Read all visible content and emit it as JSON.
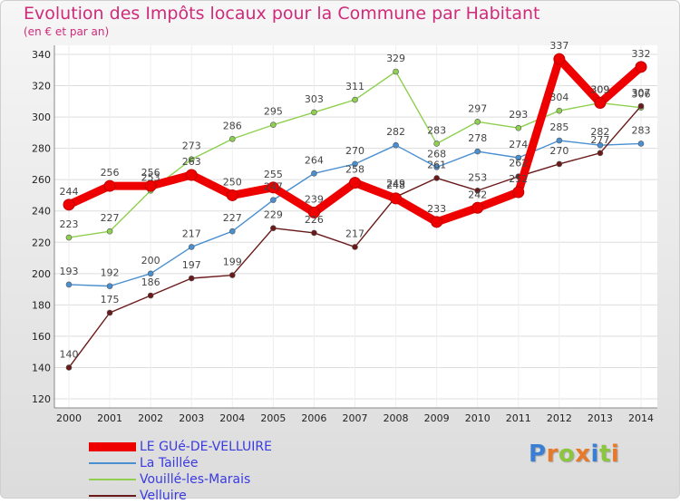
{
  "header": {
    "title": "Evolution des Impôts locaux pour la Commune par Habitant",
    "subtitle": "(en € et par an)"
  },
  "logo": {
    "text": "Proxiti"
  },
  "chart_data": {
    "type": "line",
    "title": "Evolution des Impôts locaux pour la Commune par Habitant",
    "subtitle": "(en € et par an)",
    "xlabel": "",
    "ylabel": "",
    "ylim": [
      120,
      340
    ],
    "yticks": [
      120,
      140,
      160,
      180,
      200,
      220,
      240,
      260,
      280,
      300,
      320,
      340
    ],
    "categories": [
      "2000",
      "2001",
      "2002",
      "2003",
      "2004",
      "2005",
      "2006",
      "2007",
      "2008",
      "2009",
      "2010",
      "2011",
      "2012",
      "2013",
      "2014"
    ],
    "grid": true,
    "legend_position": "bottom-left",
    "series": [
      {
        "name": "LE GUé-DE-VELLUIRE",
        "color": "#ee0000",
        "values": [
          244,
          256,
          256,
          263,
          250,
          255,
          239,
          258,
          248,
          233,
          242,
          252,
          337,
          309,
          332
        ]
      },
      {
        "name": "La Taillée",
        "color": "#4a8fd0",
        "values": [
          193,
          192,
          200,
          217,
          227,
          247,
          264,
          270,
          282,
          268,
          278,
          274,
          285,
          282,
          283
        ]
      },
      {
        "name": "Vouillé-les-Marais",
        "color": "#8fd050",
        "values": [
          223,
          227,
          253,
          273,
          286,
          295,
          303,
          311,
          329,
          283,
          297,
          293,
          304,
          309,
          306
        ]
      },
      {
        "name": "Velluire",
        "color": "#6a1a1a",
        "values": [
          140,
          175,
          186,
          197,
          199,
          229,
          226,
          217,
          249,
          261,
          253,
          262,
          270,
          277,
          307
        ]
      }
    ],
    "data_labels": [
      [
        "244",
        "256",
        "256",
        "263",
        "250",
        "255",
        "239",
        "258",
        "248",
        "233",
        "242",
        "252",
        "337",
        "309",
        "332"
      ],
      [
        "193",
        "192",
        "200",
        "217",
        "227",
        "247",
        "264",
        "270",
        "282",
        "268",
        "278",
        "274",
        "285",
        "282",
        "283"
      ],
      [
        "223",
        "227",
        "253",
        "273",
        "286",
        "295",
        "303",
        "311",
        "329",
        "283",
        "297",
        "293",
        "304",
        "309",
        "306"
      ],
      [
        "140",
        "175",
        "186",
        "197",
        "199",
        "229",
        "226",
        "217",
        "249",
        "261",
        "253",
        "262",
        "270",
        "277",
        "307"
      ]
    ]
  }
}
